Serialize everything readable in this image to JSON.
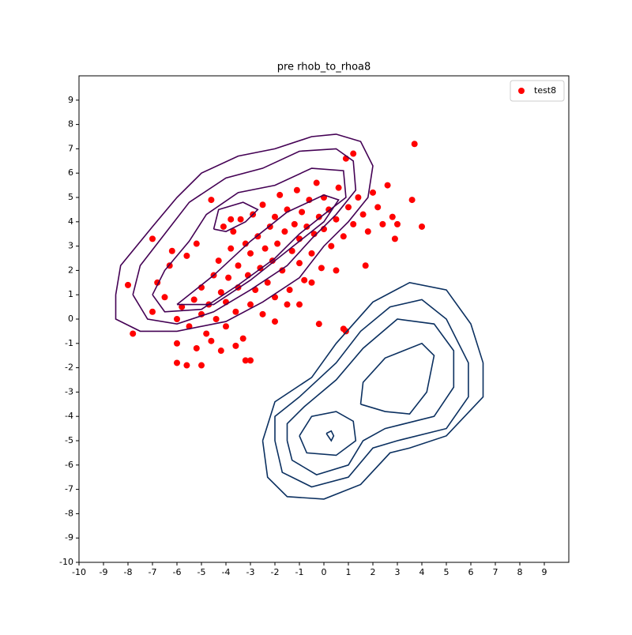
{
  "chart_data": {
    "type": "scatter",
    "title": "pre rhob_to_rhoa8",
    "xlim": [
      -10,
      10
    ],
    "ylim": [
      -10,
      10
    ],
    "xticks": [
      -10,
      -9,
      -8,
      -7,
      -6,
      -5,
      -4,
      -3,
      -2,
      -1,
      0,
      1,
      2,
      3,
      4,
      5,
      6,
      7,
      8,
      9
    ],
    "yticks": [
      -10,
      -9,
      -8,
      -7,
      -6,
      -5,
      -4,
      -3,
      -2,
      -1,
      0,
      1,
      2,
      3,
      4,
      5,
      6,
      7,
      8,
      9
    ],
    "legend": "upper right",
    "series": [
      {
        "name": "test8",
        "color": "#ff0000",
        "x": [
          -6,
          -5.8,
          -5.5,
          -5.3,
          -5,
          -5,
          -4.8,
          -4.7,
          -4.5,
          -4.4,
          -4.3,
          -4.2,
          -4,
          -4,
          -3.9,
          -3.8,
          -3.7,
          -3.6,
          -3.5,
          -3.5,
          -3.4,
          -3.3,
          -3.2,
          -3.1,
          -3,
          -3,
          -2.9,
          -2.8,
          -2.7,
          -2.6,
          -2.5,
          -2.5,
          -2.4,
          -2.3,
          -2.2,
          -2.1,
          -2,
          -2,
          -1.9,
          -1.8,
          -1.7,
          -1.6,
          -1.5,
          -1.4,
          -1.3,
          -1.2,
          -1.1,
          -1,
          -1,
          -0.9,
          -0.8,
          -0.7,
          -0.6,
          -0.5,
          -0.4,
          -0.3,
          -0.2,
          -0.1,
          0,
          0,
          0.2,
          0.3,
          0.5,
          0.6,
          0.8,
          1,
          1.2,
          1.4,
          1.6,
          1.8,
          2,
          2.2,
          2.4,
          2.6,
          2.8,
          -6.3,
          -6.5,
          -6.8,
          -7,
          -6,
          -5.2,
          -4.6,
          -4.2,
          -3.6,
          -3.8,
          -4.1,
          -4.6,
          -5.6,
          -5.2,
          -6.2,
          -1.5,
          -1,
          -2,
          -0.5,
          0.5,
          3.7,
          4,
          3.6,
          -7.8,
          -8,
          -7,
          0.8,
          0.9,
          -3,
          -3.2,
          -5,
          -5.6,
          -6,
          1.2,
          0.9,
          3,
          2.9,
          1.7,
          -0.2
        ],
        "values": [
          0,
          0.5,
          -0.3,
          0.8,
          0.2,
          1.3,
          -0.6,
          0.6,
          1.8,
          0,
          2.4,
          1.1,
          -0.3,
          0.7,
          1.7,
          2.9,
          3.6,
          0.3,
          1.3,
          2.2,
          4.1,
          -0.8,
          3.1,
          1.8,
          0.6,
          2.7,
          4.3,
          1.2,
          3.4,
          2.1,
          0.2,
          4.7,
          2.9,
          1.5,
          3.8,
          2.4,
          4.2,
          0.9,
          3.1,
          5.1,
          2,
          3.6,
          4.5,
          1.2,
          2.8,
          3.9,
          5.3,
          2.3,
          3.3,
          4.4,
          1.6,
          3.8,
          4.9,
          2.7,
          3.5,
          5.6,
          4.2,
          2.1,
          3.7,
          5,
          4.5,
          3,
          4.1,
          5.4,
          3.4,
          4.6,
          3.9,
          5,
          4.3,
          3.6,
          5.2,
          4.6,
          3.9,
          5.5,
          4.2,
          2.2,
          0.9,
          1.5,
          0.3,
          -1,
          -1.2,
          -0.9,
          -1.3,
          -1.1,
          4.1,
          3.8,
          4.9,
          2.6,
          3.1,
          2.8,
          0.6,
          0.6,
          -0.1,
          1.5,
          2,
          7.2,
          3.8,
          4.9,
          -0.6,
          1.4,
          3.3,
          -0.4,
          -0.5,
          -1.7,
          -1.7,
          -1.9,
          -1.9,
          -1.8,
          6.8,
          6.6,
          3.9,
          3.3,
          2.2,
          -0.2
        ]
      }
    ],
    "contours": [
      {
        "color": "#440154",
        "x": [
          -8.5,
          -8.3,
          -7,
          -6,
          -5,
          -3.5,
          -2,
          -0.5,
          0.5,
          1.5,
          2,
          1.8,
          1,
          0,
          -1,
          -2.5,
          -4,
          -6,
          -7.5,
          -8.5,
          -8.5
        ],
        "y": [
          1,
          2.2,
          3.8,
          5,
          6,
          6.7,
          7,
          7.5,
          7.6,
          7.3,
          6.3,
          5,
          4,
          3,
          1.7,
          0.7,
          -0.1,
          -0.5,
          -0.5,
          0,
          1
        ]
      },
      {
        "color": "#440154",
        "x": [
          -7.8,
          -7.5,
          -6.5,
          -5.5,
          -4,
          -2.5,
          -1,
          0.5,
          1.2,
          1.3,
          0.5,
          -0.5,
          -1.5,
          -3,
          -4.5,
          -6,
          -7.2,
          -7.8
        ],
        "y": [
          1,
          2.2,
          3.5,
          4.8,
          5.8,
          6.2,
          6.9,
          7,
          6.5,
          5.3,
          4.3,
          3.3,
          2.2,
          1.2,
          0.3,
          -0.2,
          0,
          1
        ]
      },
      {
        "color": "#440154",
        "x": [
          -7,
          -6.5,
          -5.5,
          -4.8,
          -3.5,
          -2,
          -0.5,
          0.8,
          0.9,
          0,
          -1,
          -2,
          -3.5,
          -5,
          -6.5,
          -7
        ],
        "y": [
          1,
          2,
          3.2,
          4.3,
          5.2,
          5.5,
          6.2,
          6.1,
          5,
          4.3,
          3.5,
          2.5,
          1.4,
          0.4,
          0.3,
          1
        ]
      },
      {
        "color": "#440154",
        "x": [
          -4.5,
          -4.3,
          -3.3,
          -2.7,
          -3.2,
          -4,
          -4.5
        ],
        "y": [
          3.7,
          4.5,
          4.8,
          4.5,
          4,
          3.6,
          3.7
        ]
      },
      {
        "color": "#440154",
        "x": [
          -6,
          -4.5,
          -3,
          -1.5,
          0,
          0.6,
          0,
          -1.5,
          -3,
          -4.5,
          -6
        ],
        "y": [
          0.6,
          1.8,
          3.2,
          4.4,
          5.1,
          4.9,
          4,
          2.8,
          1.6,
          0.6,
          0.6
        ]
      },
      {
        "color": "#0b3060",
        "x": [
          -2.5,
          -2.3,
          -1.5,
          0,
          1.5,
          2.7,
          3.5,
          5,
          6.5,
          6.5,
          6,
          5,
          3.5,
          2,
          0.5,
          -0.5,
          -2,
          -2.5
        ],
        "y": [
          -5,
          -6.5,
          -7.3,
          -7.4,
          -6.8,
          -5.5,
          -5.3,
          -4.8,
          -3.2,
          -1.8,
          -0.2,
          1.2,
          1.5,
          0.7,
          -1,
          -2.4,
          -3.4,
          -5
        ]
      },
      {
        "color": "#0b3060",
        "x": [
          -2,
          -1.7,
          -0.5,
          1,
          2,
          3,
          5,
          5.9,
          5.9,
          5,
          4,
          2.7,
          1.5,
          0.5,
          -1,
          -2,
          -2
        ],
        "y": [
          -5,
          -6.3,
          -6.9,
          -6.5,
          -5.3,
          -5,
          -4.5,
          -3.2,
          -1.8,
          0,
          0.8,
          0.5,
          -0.5,
          -1.8,
          -3.2,
          -4,
          -5
        ]
      },
      {
        "color": "#0b3060",
        "x": [
          -1.5,
          -1.3,
          -0.3,
          1,
          1.6,
          2.5,
          4.5,
          5.3,
          5.3,
          4.5,
          3,
          1.6,
          0.5,
          -0.8,
          -1.5,
          -1.5
        ],
        "y": [
          -5,
          -5.8,
          -6.4,
          -6,
          -5,
          -4.5,
          -4,
          -2.8,
          -1.3,
          -0.2,
          0,
          -1.2,
          -2.5,
          -3.6,
          -4.3,
          -5
        ]
      },
      {
        "color": "#0b3060",
        "x": [
          -1,
          -0.7,
          0.5,
          1.3,
          1.2,
          0.5,
          -0.5,
          -1
        ],
        "y": [
          -4.8,
          -5.5,
          -5.6,
          -5,
          -4.2,
          -3.8,
          -4,
          -4.8
        ]
      },
      {
        "color": "#0b3060",
        "x": [
          1.5,
          1.6,
          2.5,
          4,
          4.5,
          4.2,
          3.5,
          2.5,
          1.5
        ],
        "y": [
          -3.5,
          -2.6,
          -1.6,
          -1,
          -1.5,
          -3,
          -3.9,
          -3.8,
          -3.5
        ]
      },
      {
        "color": "#0b3060",
        "x": [
          0.1,
          0.3,
          0.4,
          0.3,
          0.1
        ],
        "y": [
          -4.7,
          -4.6,
          -4.8,
          -5,
          -4.7
        ]
      }
    ]
  }
}
